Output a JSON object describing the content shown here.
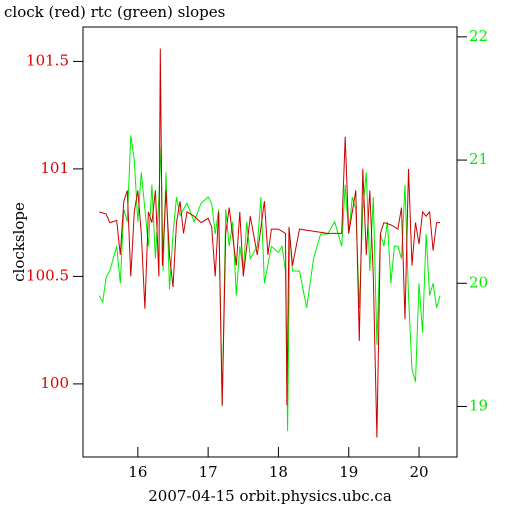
{
  "chart_data": {
    "type": "line",
    "title": "clock (red) rtc (green) slopes",
    "xlabel": "2007-04-15 orbit.physics.ubc.ca",
    "ylabel": "clockslope",
    "xlim": [
      15.22,
      20.54
    ],
    "xticks": [
      16,
      17,
      18,
      19,
      20
    ],
    "ylim": [
      99.66,
      101.66
    ],
    "yticks": [
      100,
      100.5,
      101,
      101.5
    ],
    "y2lim": [
      18.59,
      22.08
    ],
    "y2ticks": [
      19,
      20,
      21,
      22
    ],
    "left_color": "#dd0000",
    "right_color": "#00ee00",
    "series": [
      {
        "name": "clock",
        "color": "#cc0000",
        "x": [
          15.45,
          15.55,
          15.6,
          15.7,
          15.75,
          15.8,
          15.85,
          15.9,
          15.95,
          16.0,
          16.05,
          16.1,
          16.15,
          16.2,
          16.25,
          16.3,
          16.32,
          16.35,
          16.4,
          16.45,
          16.5,
          16.55,
          16.6,
          16.65,
          16.7,
          16.8,
          16.9,
          17.0,
          17.05,
          17.1,
          17.15,
          17.2,
          17.25,
          17.3,
          17.4,
          17.45,
          17.5,
          17.6,
          17.7,
          17.8,
          17.85,
          17.9,
          18.0,
          18.1,
          18.12,
          18.15,
          18.2,
          18.3,
          18.5,
          18.7,
          18.9,
          18.95,
          19.0,
          19.1,
          19.15,
          19.2,
          19.25,
          19.3,
          19.35,
          19.4,
          19.45,
          19.5,
          19.6,
          19.7,
          19.75,
          19.8,
          19.85,
          19.9,
          19.95,
          20.0,
          20.05,
          20.1,
          20.15,
          20.2,
          20.25,
          20.3
        ],
        "values": [
          100.8,
          100.79,
          100.75,
          100.76,
          100.6,
          100.85,
          100.9,
          100.5,
          100.8,
          100.9,
          100.7,
          100.35,
          100.8,
          100.75,
          100.9,
          100.5,
          101.56,
          100.55,
          100.9,
          100.6,
          100.45,
          100.75,
          100.85,
          100.7,
          100.8,
          100.78,
          100.75,
          100.77,
          100.73,
          100.5,
          100.8,
          99.9,
          100.7,
          100.82,
          100.55,
          100.8,
          100.5,
          100.78,
          100.6,
          100.85,
          100.6,
          100.72,
          100.72,
          100.7,
          99.9,
          100.73,
          100.55,
          100.72,
          100.71,
          100.7,
          100.7,
          101.15,
          100.7,
          100.9,
          100.2,
          101.0,
          100.6,
          100.9,
          100.5,
          99.75,
          100.7,
          100.75,
          100.74,
          100.72,
          100.82,
          100.3,
          101.0,
          100.55,
          100.75,
          100.65,
          100.8,
          100.78,
          100.8,
          100.62,
          100.75,
          100.75
        ]
      },
      {
        "name": "rtc",
        "color": "#00ee00",
        "axis": "y2",
        "x": [
          15.45,
          15.5,
          15.55,
          15.6,
          15.65,
          15.7,
          15.75,
          15.8,
          15.85,
          15.9,
          15.95,
          16.0,
          16.05,
          16.1,
          16.15,
          16.2,
          16.25,
          16.3,
          16.33,
          16.36,
          16.4,
          16.45,
          16.5,
          16.55,
          16.6,
          16.7,
          16.8,
          16.9,
          17.0,
          17.05,
          17.1,
          17.15,
          17.2,
          17.25,
          17.3,
          17.35,
          17.4,
          17.45,
          17.5,
          17.55,
          17.6,
          17.7,
          17.75,
          17.8,
          17.9,
          18.0,
          18.05,
          18.1,
          18.13,
          18.16,
          18.2,
          18.3,
          18.4,
          18.5,
          18.6,
          18.7,
          18.8,
          18.9,
          18.95,
          19.0,
          19.05,
          19.1,
          19.15,
          19.2,
          19.25,
          19.3,
          19.35,
          19.4,
          19.45,
          19.5,
          19.55,
          19.6,
          19.65,
          19.7,
          19.75,
          19.8,
          19.85,
          19.9,
          19.95,
          20.0,
          20.05,
          20.1,
          20.15,
          20.2,
          20.25,
          20.3
        ],
        "values": [
          19.9,
          19.85,
          20.05,
          20.1,
          20.2,
          20.3,
          20.0,
          20.6,
          20.5,
          21.2,
          21.0,
          20.5,
          20.9,
          20.6,
          20.3,
          20.8,
          20.2,
          20.7,
          21.1,
          20.1,
          20.9,
          19.95,
          20.4,
          20.7,
          20.55,
          20.65,
          20.5,
          20.65,
          20.7,
          20.65,
          20.4,
          20.6,
          19.0,
          20.6,
          20.3,
          20.5,
          19.9,
          20.3,
          20.1,
          20.5,
          20.2,
          20.3,
          20.7,
          20.0,
          20.3,
          20.25,
          20.3,
          20.1,
          18.8,
          20.4,
          20.1,
          20.1,
          19.8,
          20.2,
          20.4,
          20.4,
          20.5,
          20.3,
          20.8,
          20.4,
          20.7,
          20.6,
          19.8,
          20.6,
          20.9,
          20.1,
          20.7,
          19.5,
          20.4,
          20.3,
          20.5,
          20.0,
          20.3,
          20.3,
          20.2,
          20.8,
          19.9,
          19.3,
          19.2,
          20.0,
          19.6,
          20.4,
          19.9,
          20.0,
          19.8,
          19.9
        ]
      }
    ]
  }
}
